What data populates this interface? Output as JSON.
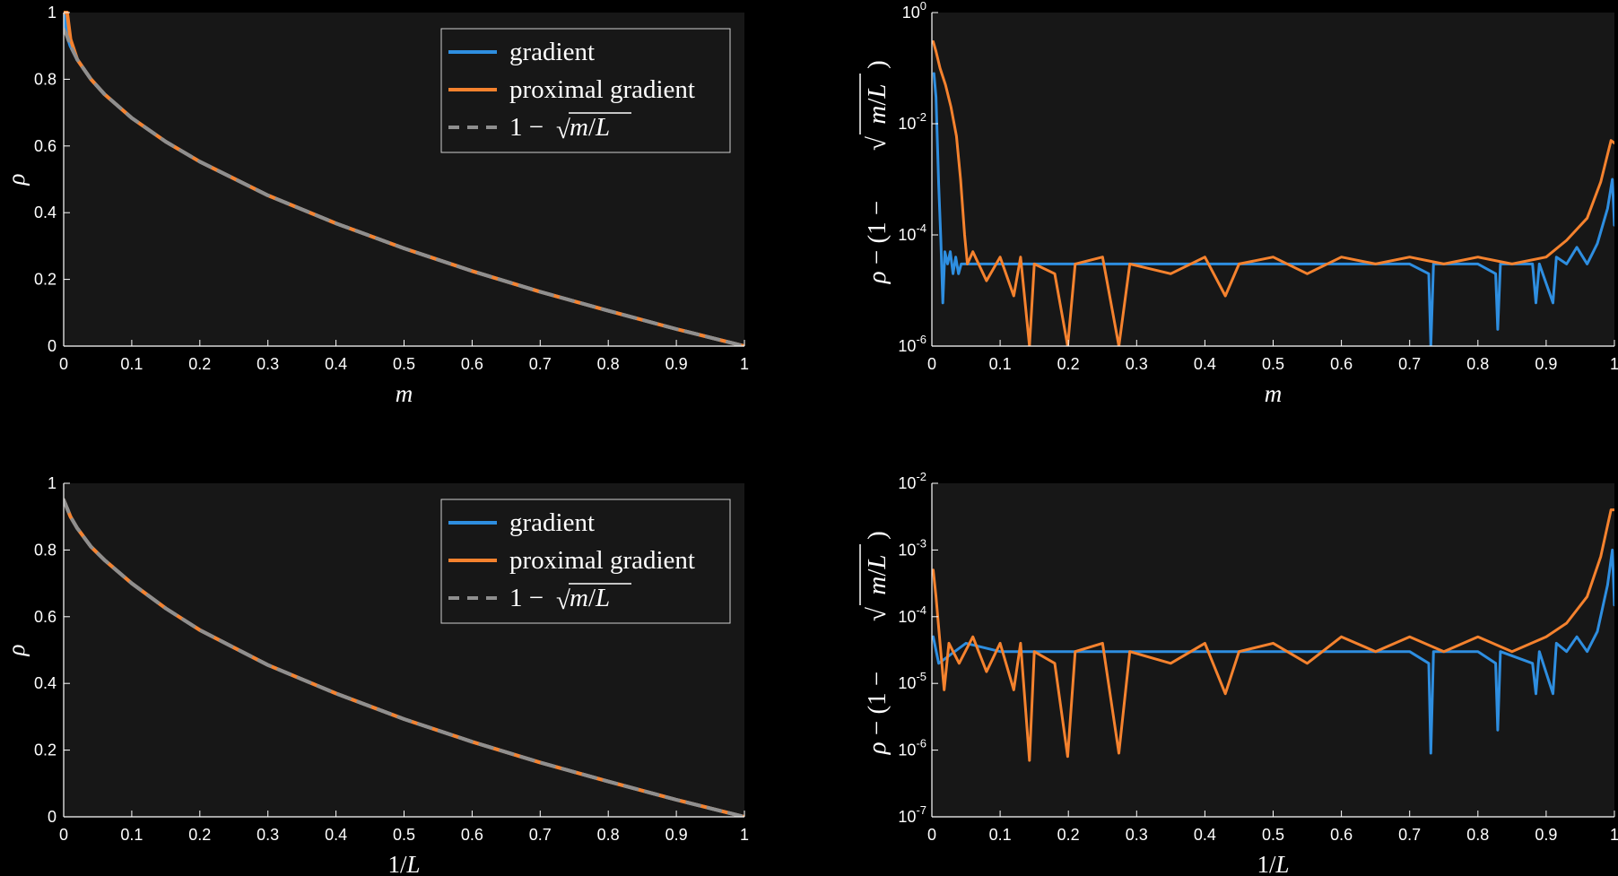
{
  "legend_entries": [
    "gradient",
    "proximal gradient"
  ],
  "colors": {
    "gradient": "#2e8ee0",
    "proximal": "#f5822e",
    "reference": "#8f8f8f",
    "axes_bg": "#171717",
    "page_bg": "#000000"
  },
  "math": {
    "one_minus": "1 −",
    "sqrt_sign": "√",
    "m": "m",
    "slash_L": "/L",
    "rho": "ρ",
    "rho_minus_paren": "ρ − (1 −",
    "close_paren": ")",
    "x_m": "m",
    "x_inv_L": "1/L"
  },
  "chart_data": [
    {
      "type": "line",
      "panel": "top-left",
      "xlabel": "m",
      "ylabel": "ρ",
      "xlim": [
        0,
        1
      ],
      "ylim": [
        0,
        1
      ],
      "x_ticks": [
        "0",
        "0.1",
        "0.2",
        "0.3",
        "0.4",
        "0.5",
        "0.6",
        "0.7",
        "0.8",
        "0.9",
        "1"
      ],
      "y_ticks": [
        "0",
        "0.2",
        "0.4",
        "0.6",
        "0.8",
        "1"
      ],
      "legend": "top-right",
      "grid": false,
      "x": [
        0,
        0.005,
        0.01,
        0.02,
        0.04,
        0.06,
        0.1,
        0.15,
        0.2,
        0.3,
        0.4,
        0.5,
        0.6,
        0.7,
        0.8,
        0.9,
        1
      ],
      "series": [
        {
          "name": "gradient",
          "style": "solid",
          "values": [
            1,
            0.93,
            0.9,
            0.859,
            0.8,
            0.755,
            0.684,
            0.613,
            0.553,
            0.452,
            0.368,
            0.293,
            0.225,
            0.163,
            0.106,
            0.051,
            0
          ]
        },
        {
          "name": "proximal gradient",
          "style": "solid",
          "values": [
            1,
            1,
            0.92,
            0.859,
            0.8,
            0.755,
            0.684,
            0.613,
            0.553,
            0.452,
            0.368,
            0.293,
            0.225,
            0.163,
            0.106,
            0.051,
            0
          ]
        },
        {
          "name": "1 − √m/L",
          "style": "dashed",
          "values": [
            0.95,
            0.929,
            0.9,
            0.859,
            0.8,
            0.755,
            0.684,
            0.613,
            0.553,
            0.452,
            0.368,
            0.293,
            0.225,
            0.163,
            0.106,
            0.051,
            0
          ]
        }
      ]
    },
    {
      "type": "line",
      "panel": "top-right",
      "xlabel": "m",
      "ylabel": "ρ − (1 − √m/L)",
      "xlim": [
        0,
        1
      ],
      "ylim": [
        1e-06,
        1
      ],
      "yscale": "log",
      "x_ticks": [
        "0",
        "0.1",
        "0.2",
        "0.3",
        "0.4",
        "0.5",
        "0.6",
        "0.7",
        "0.8",
        "0.9",
        "1"
      ],
      "y_ticks": [
        "10^-6",
        "10^-4",
        "10^-2",
        "10^0"
      ],
      "grid": false,
      "series": [
        {
          "name": "gradient",
          "values": [
            [
              0.003,
              0.08
            ],
            [
              0.006,
              0.03
            ],
            [
              0.008,
              0.005
            ],
            [
              0.01,
              0.0008
            ],
            [
              0.013,
              9e-05
            ],
            [
              0.016,
              6e-06
            ],
            [
              0.019,
              5e-05
            ],
            [
              0.023,
              3e-05
            ],
            [
              0.027,
              5e-05
            ],
            [
              0.031,
              2e-05
            ],
            [
              0.035,
              4e-05
            ],
            [
              0.039,
              2e-05
            ],
            [
              0.043,
              3e-05
            ],
            [
              0.05,
              3e-05
            ],
            [
              0.1,
              3e-05
            ],
            [
              0.2,
              3e-05
            ],
            [
              0.3,
              3e-05
            ],
            [
              0.4,
              3e-05
            ],
            [
              0.5,
              3e-05
            ],
            [
              0.6,
              3e-05
            ],
            [
              0.7,
              3e-05
            ],
            [
              0.728,
              2e-05
            ],
            [
              0.731,
              1e-06
            ],
            [
              0.735,
              3e-05
            ],
            [
              0.8,
              3e-05
            ],
            [
              0.826,
              2e-05
            ],
            [
              0.829,
              2e-06
            ],
            [
              0.833,
              3e-05
            ],
            [
              0.88,
              3e-05
            ],
            [
              0.885,
              6e-06
            ],
            [
              0.89,
              3e-05
            ],
            [
              0.91,
              6e-06
            ],
            [
              0.915,
              4e-05
            ],
            [
              0.93,
              3e-05
            ],
            [
              0.945,
              6e-05
            ],
            [
              0.96,
              3e-05
            ],
            [
              0.975,
              7e-05
            ],
            [
              0.99,
              0.0003
            ],
            [
              0.997,
              0.001
            ],
            [
              1.0,
              0.00015
            ]
          ]
        },
        {
          "name": "proximal gradient",
          "values": [
            [
              0.002,
              0.3
            ],
            [
              0.006,
              0.2
            ],
            [
              0.012,
              0.1
            ],
            [
              0.02,
              0.05
            ],
            [
              0.028,
              0.02
            ],
            [
              0.036,
              0.006
            ],
            [
              0.042,
              0.001
            ],
            [
              0.048,
              0.0001
            ],
            [
              0.052,
              3e-05
            ],
            [
              0.06,
              5e-05
            ],
            [
              0.08,
              1.5e-05
            ],
            [
              0.1,
              4e-05
            ],
            [
              0.12,
              8e-06
            ],
            [
              0.13,
              4e-05
            ],
            [
              0.143,
              6e-07
            ],
            [
              0.15,
              3e-05
            ],
            [
              0.18,
              2e-05
            ],
            [
              0.199,
              9e-07
            ],
            [
              0.21,
              3e-05
            ],
            [
              0.25,
              4e-05
            ],
            [
              0.274,
              9e-07
            ],
            [
              0.29,
              3e-05
            ],
            [
              0.35,
              2e-05
            ],
            [
              0.4,
              4e-05
            ],
            [
              0.43,
              8e-06
            ],
            [
              0.45,
              3e-05
            ],
            [
              0.5,
              4e-05
            ],
            [
              0.55,
              2e-05
            ],
            [
              0.6,
              4e-05
            ],
            [
              0.65,
              3e-05
            ],
            [
              0.7,
              4e-05
            ],
            [
              0.75,
              3e-05
            ],
            [
              0.8,
              4e-05
            ],
            [
              0.85,
              3e-05
            ],
            [
              0.9,
              4e-05
            ],
            [
              0.93,
              8e-05
            ],
            [
              0.96,
              0.0002
            ],
            [
              0.98,
              0.0009
            ],
            [
              0.995,
              0.005
            ],
            [
              1.0,
              0.0045
            ]
          ]
        }
      ]
    },
    {
      "type": "line",
      "panel": "bottom-left",
      "xlabel": "1/L",
      "ylabel": "ρ",
      "xlim": [
        0,
        1
      ],
      "ylim": [
        0,
        1
      ],
      "x_ticks": [
        "0",
        "0.1",
        "0.2",
        "0.3",
        "0.4",
        "0.5",
        "0.6",
        "0.7",
        "0.8",
        "0.9",
        "1"
      ],
      "y_ticks": [
        "0",
        "0.2",
        "0.4",
        "0.6",
        "0.8",
        "1"
      ],
      "legend": "top-right",
      "grid": false,
      "x": [
        0,
        0.01,
        0.02,
        0.04,
        0.06,
        0.1,
        0.15,
        0.2,
        0.3,
        0.4,
        0.5,
        0.6,
        0.7,
        0.8,
        0.9,
        1
      ],
      "series": [
        {
          "name": "gradient",
          "style": "solid",
          "values": [
            0.95,
            0.9,
            0.865,
            0.81,
            0.77,
            0.7,
            0.625,
            0.56,
            0.455,
            0.37,
            0.293,
            0.225,
            0.163,
            0.106,
            0.051,
            0
          ]
        },
        {
          "name": "proximal gradient",
          "style": "solid",
          "values": [
            0.95,
            0.9,
            0.865,
            0.81,
            0.77,
            0.7,
            0.625,
            0.56,
            0.455,
            0.37,
            0.293,
            0.225,
            0.163,
            0.106,
            0.051,
            0
          ]
        },
        {
          "name": "1 − √m/L",
          "style": "dashed",
          "values": [
            0.95,
            0.9,
            0.865,
            0.81,
            0.77,
            0.7,
            0.625,
            0.56,
            0.455,
            0.37,
            0.293,
            0.225,
            0.163,
            0.106,
            0.051,
            0
          ]
        }
      ]
    },
    {
      "type": "line",
      "panel": "bottom-right",
      "xlabel": "1/L",
      "ylabel": "ρ − (1 − √m/L)",
      "xlim": [
        0,
        1
      ],
      "ylim": [
        1e-07,
        0.01
      ],
      "yscale": "log",
      "x_ticks": [
        "0",
        "0.1",
        "0.2",
        "0.3",
        "0.4",
        "0.5",
        "0.6",
        "0.7",
        "0.8",
        "0.9",
        "1"
      ],
      "y_ticks": [
        "10^-7",
        "10^-6",
        "10^-5",
        "10^-4",
        "10^-3",
        "10^-2"
      ],
      "grid": false,
      "series": [
        {
          "name": "gradient",
          "values": [
            [
              0.002,
              5e-05
            ],
            [
              0.01,
              2e-05
            ],
            [
              0.05,
              4e-05
            ],
            [
              0.1,
              3e-05
            ],
            [
              0.2,
              3e-05
            ],
            [
              0.3,
              3e-05
            ],
            [
              0.4,
              3e-05
            ],
            [
              0.5,
              3e-05
            ],
            [
              0.6,
              3e-05
            ],
            [
              0.7,
              3e-05
            ],
            [
              0.728,
              2e-05
            ],
            [
              0.731,
              9e-07
            ],
            [
              0.735,
              3e-05
            ],
            [
              0.8,
              3e-05
            ],
            [
              0.826,
              2e-05
            ],
            [
              0.829,
              2e-06
            ],
            [
              0.833,
              3e-05
            ],
            [
              0.88,
              2e-05
            ],
            [
              0.885,
              7e-06
            ],
            [
              0.89,
              3e-05
            ],
            [
              0.91,
              7e-06
            ],
            [
              0.915,
              4e-05
            ],
            [
              0.93,
              3e-05
            ],
            [
              0.945,
              5e-05
            ],
            [
              0.96,
              3e-05
            ],
            [
              0.975,
              6e-05
            ],
            [
              0.99,
              0.0003
            ],
            [
              0.997,
              0.001
            ],
            [
              1.0,
              0.00015
            ]
          ]
        },
        {
          "name": "proximal gradient",
          "values": [
            [
              0.002,
              0.0005
            ],
            [
              0.006,
              0.0002
            ],
            [
              0.012,
              4e-05
            ],
            [
              0.018,
              8e-06
            ],
            [
              0.025,
              4e-05
            ],
            [
              0.04,
              2e-05
            ],
            [
              0.06,
              5e-05
            ],
            [
              0.08,
              1.5e-05
            ],
            [
              0.1,
              4e-05
            ],
            [
              0.12,
              8e-06
            ],
            [
              0.13,
              4e-05
            ],
            [
              0.143,
              7e-07
            ],
            [
              0.15,
              3e-05
            ],
            [
              0.18,
              2e-05
            ],
            [
              0.199,
              8e-07
            ],
            [
              0.21,
              3e-05
            ],
            [
              0.25,
              4e-05
            ],
            [
              0.274,
              9e-07
            ],
            [
              0.29,
              3e-05
            ],
            [
              0.35,
              2e-05
            ],
            [
              0.4,
              4e-05
            ],
            [
              0.43,
              7e-06
            ],
            [
              0.45,
              3e-05
            ],
            [
              0.5,
              4e-05
            ],
            [
              0.55,
              2e-05
            ],
            [
              0.6,
              5e-05
            ],
            [
              0.65,
              3e-05
            ],
            [
              0.7,
              5e-05
            ],
            [
              0.75,
              3e-05
            ],
            [
              0.8,
              5e-05
            ],
            [
              0.85,
              3e-05
            ],
            [
              0.9,
              5e-05
            ],
            [
              0.93,
              8e-05
            ],
            [
              0.96,
              0.0002
            ],
            [
              0.98,
              0.0008
            ],
            [
              0.995,
              0.004
            ],
            [
              1.0,
              0.004
            ]
          ]
        }
      ]
    }
  ]
}
